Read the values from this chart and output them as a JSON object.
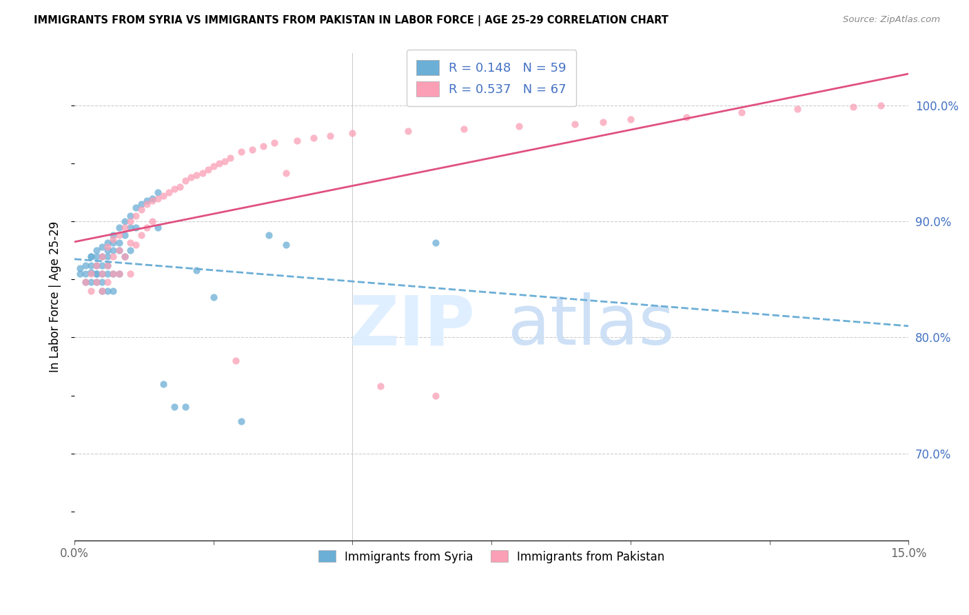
{
  "title": "IMMIGRANTS FROM SYRIA VS IMMIGRANTS FROM PAKISTAN IN LABOR FORCE | AGE 25-29 CORRELATION CHART",
  "source": "Source: ZipAtlas.com",
  "ylabel": "In Labor Force | Age 25-29",
  "ylabel_right_ticks": [
    "70.0%",
    "80.0%",
    "90.0%",
    "100.0%"
  ],
  "ylabel_right_values": [
    0.7,
    0.8,
    0.9,
    1.0
  ],
  "xmin": 0.0,
  "xmax": 0.15,
  "ymin": 0.625,
  "ymax": 1.045,
  "syria_color": "#6baed6",
  "pakistan_color": "#fa9fb5",
  "legend_label_syria": "R = 0.148   N = 59",
  "legend_label_pakistan": "R = 0.537   N = 67",
  "legend_labels": [
    "Immigrants from Syria",
    "Immigrants from Pakistan"
  ],
  "syria_x": [
    0.001,
    0.001,
    0.002,
    0.002,
    0.002,
    0.003,
    0.003,
    0.003,
    0.003,
    0.003,
    0.004,
    0.004,
    0.004,
    0.004,
    0.004,
    0.004,
    0.005,
    0.005,
    0.005,
    0.005,
    0.005,
    0.005,
    0.006,
    0.006,
    0.006,
    0.006,
    0.006,
    0.006,
    0.007,
    0.007,
    0.007,
    0.007,
    0.007,
    0.008,
    0.008,
    0.008,
    0.008,
    0.009,
    0.009,
    0.009,
    0.01,
    0.01,
    0.01,
    0.011,
    0.011,
    0.012,
    0.013,
    0.014,
    0.015,
    0.015,
    0.016,
    0.018,
    0.02,
    0.022,
    0.025,
    0.03,
    0.035,
    0.038,
    0.065
  ],
  "syria_y": [
    0.855,
    0.86,
    0.855,
    0.862,
    0.848,
    0.87,
    0.856,
    0.862,
    0.87,
    0.848,
    0.875,
    0.862,
    0.855,
    0.848,
    0.87,
    0.855,
    0.878,
    0.87,
    0.862,
    0.855,
    0.848,
    0.84,
    0.882,
    0.875,
    0.87,
    0.862,
    0.855,
    0.84,
    0.888,
    0.882,
    0.875,
    0.855,
    0.84,
    0.895,
    0.882,
    0.875,
    0.855,
    0.9,
    0.888,
    0.87,
    0.905,
    0.895,
    0.875,
    0.912,
    0.895,
    0.915,
    0.918,
    0.92,
    0.925,
    0.895,
    0.76,
    0.74,
    0.74,
    0.858,
    0.835,
    0.728,
    0.888,
    0.88,
    0.882
  ],
  "pakistan_x": [
    0.002,
    0.003,
    0.003,
    0.004,
    0.004,
    0.005,
    0.005,
    0.005,
    0.006,
    0.006,
    0.006,
    0.007,
    0.007,
    0.007,
    0.008,
    0.008,
    0.008,
    0.009,
    0.009,
    0.01,
    0.01,
    0.01,
    0.011,
    0.011,
    0.012,
    0.012,
    0.013,
    0.013,
    0.014,
    0.014,
    0.015,
    0.016,
    0.017,
    0.018,
    0.019,
    0.02,
    0.021,
    0.022,
    0.023,
    0.024,
    0.025,
    0.026,
    0.027,
    0.028,
    0.029,
    0.03,
    0.032,
    0.034,
    0.036,
    0.038,
    0.04,
    0.043,
    0.046,
    0.05,
    0.055,
    0.06,
    0.065,
    0.07,
    0.08,
    0.09,
    0.095,
    0.1,
    0.11,
    0.12,
    0.13,
    0.14,
    0.145
  ],
  "pakistan_y": [
    0.848,
    0.855,
    0.84,
    0.862,
    0.848,
    0.87,
    0.855,
    0.84,
    0.878,
    0.862,
    0.848,
    0.885,
    0.87,
    0.855,
    0.888,
    0.875,
    0.855,
    0.895,
    0.87,
    0.9,
    0.882,
    0.855,
    0.905,
    0.88,
    0.91,
    0.888,
    0.915,
    0.895,
    0.918,
    0.9,
    0.92,
    0.922,
    0.925,
    0.928,
    0.93,
    0.935,
    0.938,
    0.94,
    0.942,
    0.945,
    0.948,
    0.95,
    0.952,
    0.955,
    0.78,
    0.96,
    0.962,
    0.965,
    0.968,
    0.942,
    0.97,
    0.972,
    0.974,
    0.976,
    0.758,
    0.978,
    0.75,
    0.98,
    0.982,
    0.984,
    0.986,
    0.988,
    0.99,
    0.994,
    0.997,
    0.999,
    1.0
  ]
}
